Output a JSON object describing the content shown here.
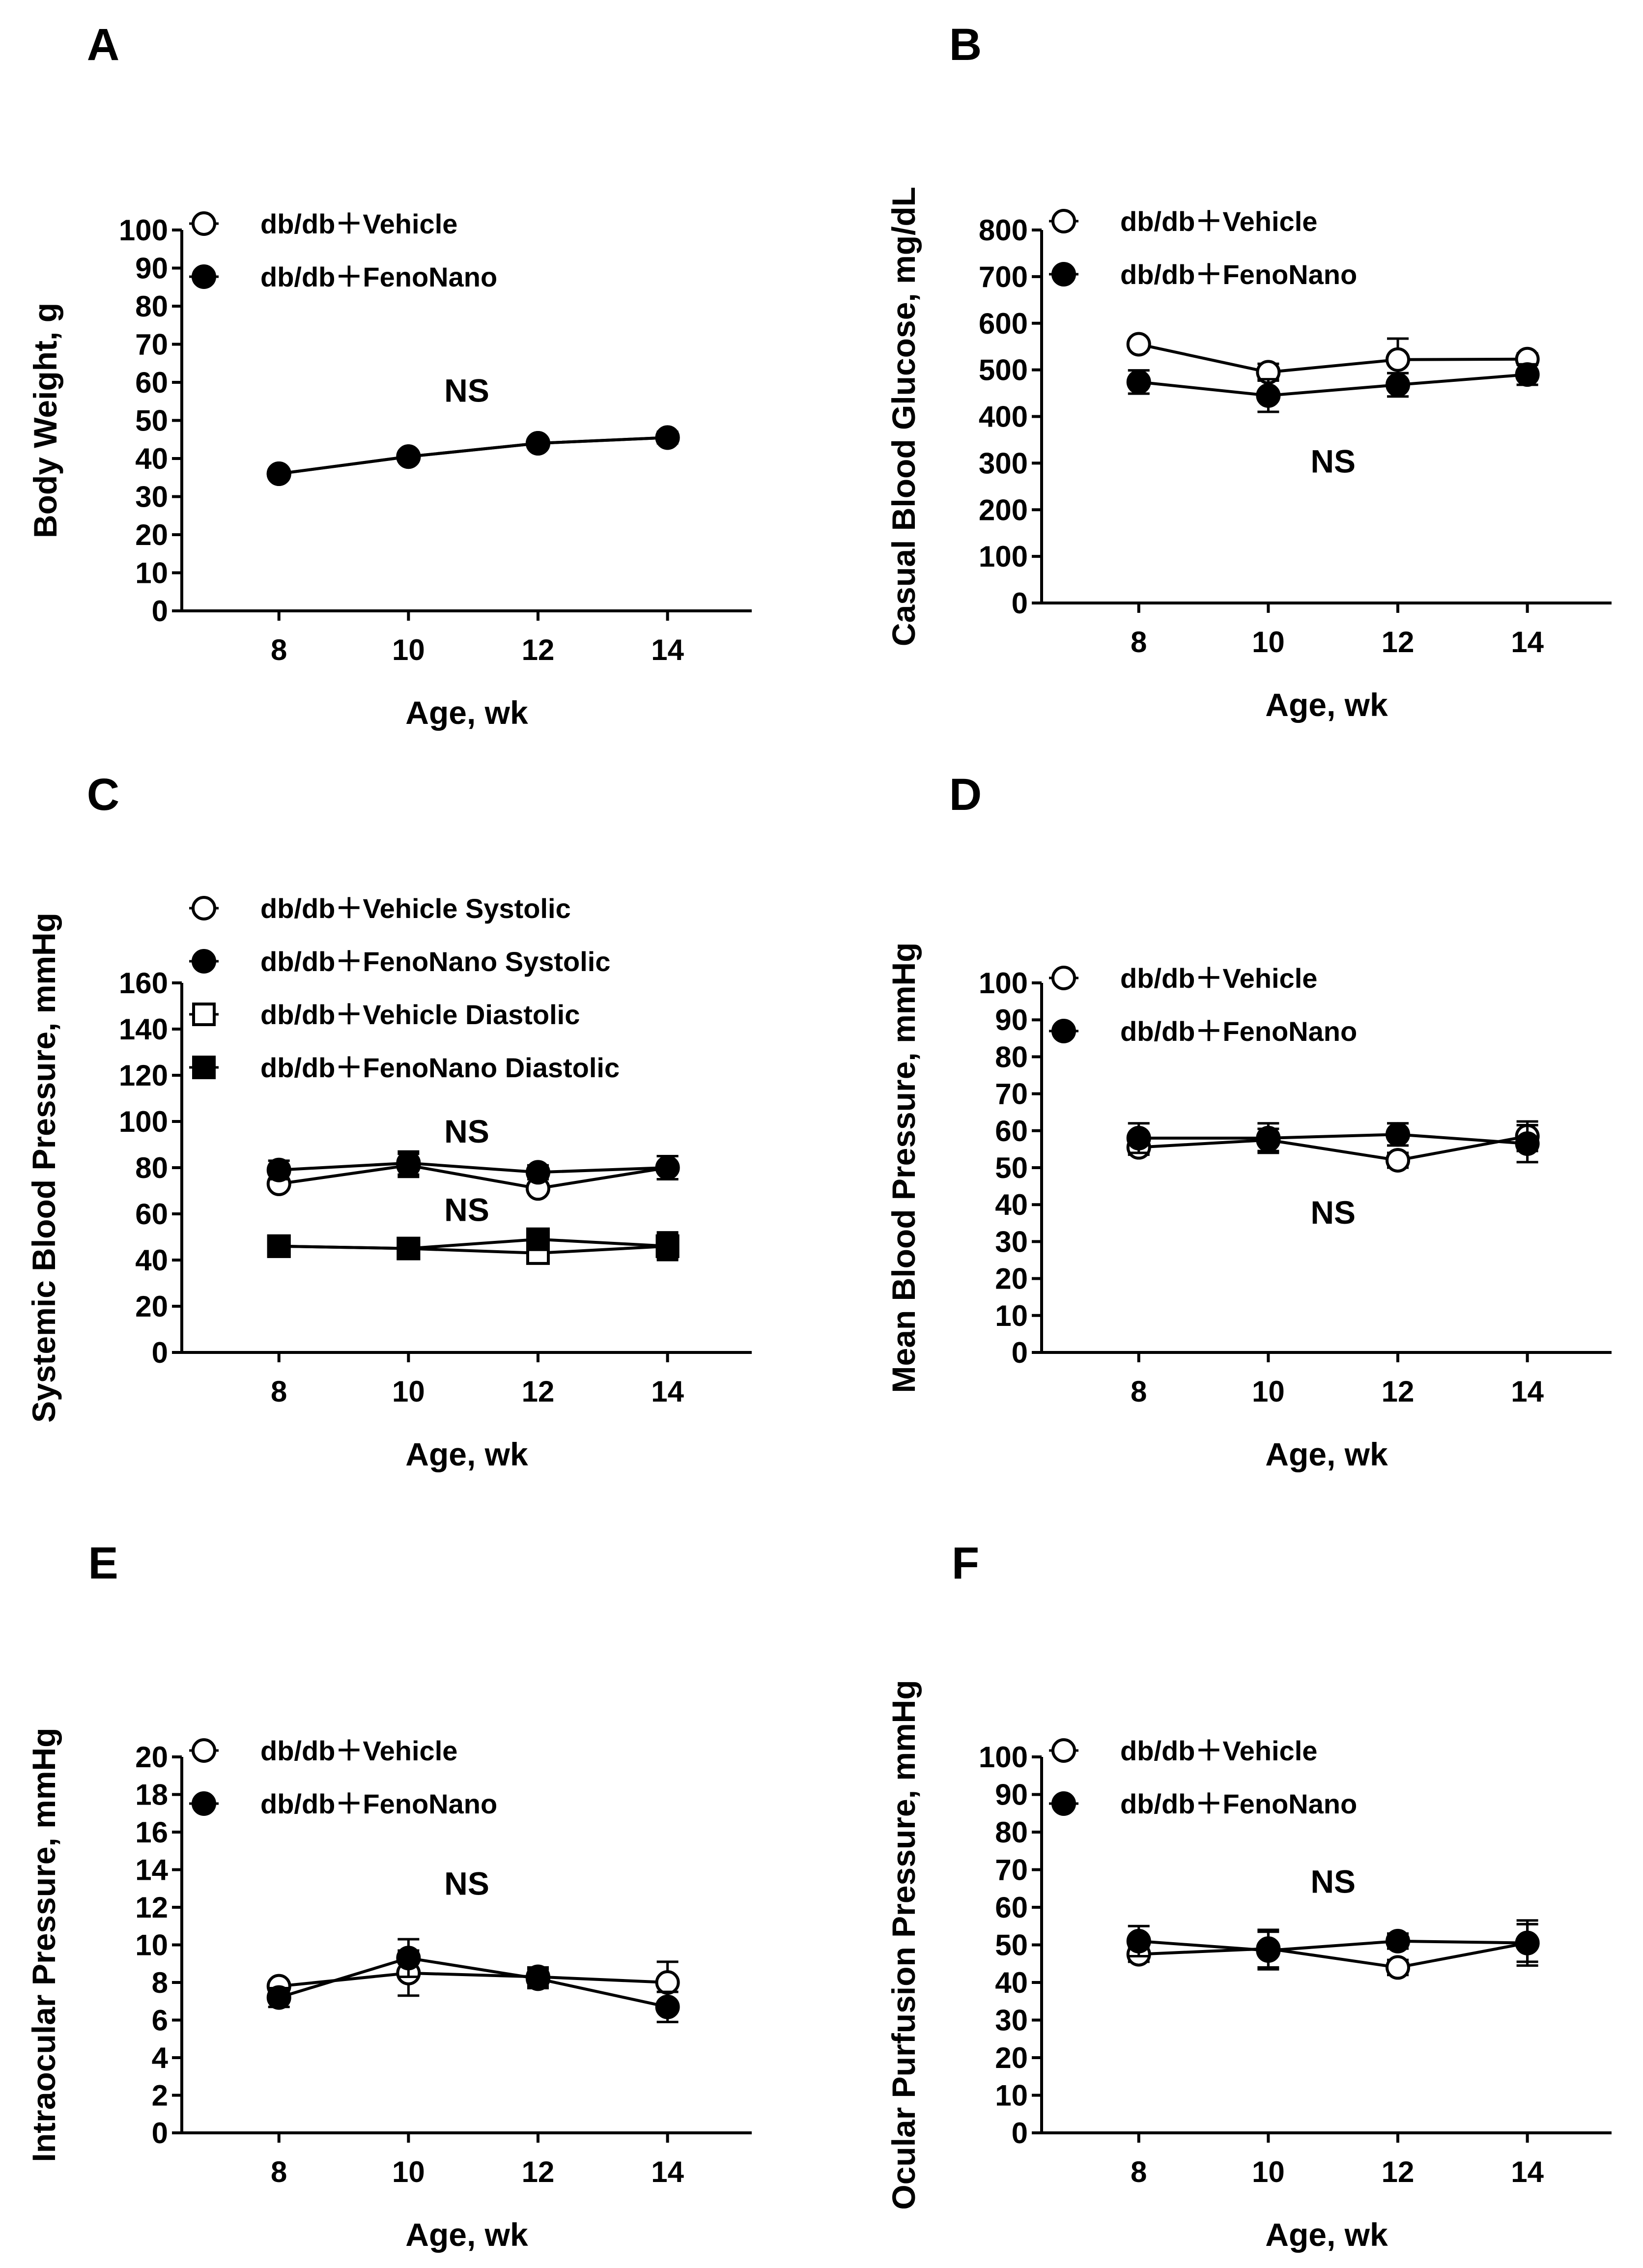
{
  "figure": {
    "panels": [
      {
        "letter": "A",
        "chart_data": {
          "type": "line",
          "title": "",
          "xlabel": "Age, wk",
          "ylabel": "Body Weight, g",
          "x": [
            8,
            10,
            12,
            14
          ],
          "xticks": [
            "8",
            "10",
            "12",
            "14"
          ],
          "xlim": [
            6.5,
            15.3
          ],
          "ylim": [
            0,
            100
          ],
          "yticks": [
            0,
            10,
            20,
            30,
            40,
            50,
            60,
            70,
            80,
            90,
            100
          ],
          "legend_position": "top-left",
          "annotations": [
            {
              "text": "NS",
              "x": 10.9,
              "y": 58
            }
          ],
          "series": [
            {
              "name": "db/db＋Vehicle",
              "marker": "circle-open",
              "values": [
                36,
                40.5,
                44,
                45.5
              ],
              "errors": [
                1,
                1,
                1,
                1
              ]
            },
            {
              "name": "db/db＋FenoNano",
              "marker": "circle-filled",
              "values": [
                36,
                40.5,
                44,
                45.5
              ],
              "errors": [
                1,
                1,
                1,
                1.5
              ]
            }
          ]
        }
      },
      {
        "letter": "B",
        "chart_data": {
          "type": "line",
          "title": "",
          "xlabel": "Age, wk",
          "ylabel": "Casual Blood Glucose, mg/dL",
          "x": [
            8,
            10,
            12,
            14
          ],
          "xticks": [
            "8",
            "10",
            "12",
            "14"
          ],
          "xlim": [
            6.5,
            15.3
          ],
          "ylim": [
            0,
            800
          ],
          "yticks": [
            0,
            100,
            200,
            300,
            400,
            500,
            600,
            700,
            800
          ],
          "legend_position": "top-left",
          "annotations": [
            {
              "text": "NS",
              "x": 11,
              "y": 305
            }
          ],
          "series": [
            {
              "name": "db/db＋Vehicle",
              "marker": "circle-open",
              "values": [
                555,
                495,
                522,
                523
              ],
              "errors": [
                0,
                18,
                45,
                12
              ]
            },
            {
              "name": "db/db＋FenoNano",
              "marker": "circle-filled",
              "values": [
                474,
                445,
                468,
                490
              ],
              "errors": [
                25,
                35,
                25,
                22
              ]
            }
          ]
        }
      },
      {
        "letter": "C",
        "chart_data": {
          "type": "line",
          "title": "",
          "xlabel": "Age, wk",
          "ylabel": "Systemic Blood Pressure, mmHg",
          "x": [
            8,
            10,
            12,
            14
          ],
          "xticks": [
            "8",
            "10",
            "12",
            "14"
          ],
          "xlim": [
            6.5,
            15.3
          ],
          "ylim": [
            0,
            160
          ],
          "yticks": [
            0,
            20,
            40,
            60,
            80,
            100,
            120,
            140,
            160
          ],
          "legend_position": "top-left",
          "annotations": [
            {
              "text": "NS",
              "x": 10.9,
              "y": 96
            },
            {
              "text": "NS",
              "x": 10.9,
              "y": 62
            }
          ],
          "series": [
            {
              "name": "db/db＋Vehicle  Systolic",
              "marker": "circle-open",
              "values": [
                73,
                81,
                71,
                80
              ],
              "errors": [
                0,
                5,
                0,
                5
              ]
            },
            {
              "name": "db/db＋FenoNano Systolic",
              "marker": "circle-filled",
              "values": [
                79,
                82,
                78,
                80
              ],
              "errors": [
                4,
                5,
                3,
                5
              ]
            },
            {
              "name": "db/db＋Vehicle Diastolic",
              "marker": "square-open",
              "values": [
                46,
                45,
                43,
                46
              ],
              "errors": [
                3,
                3,
                2,
                6
              ]
            },
            {
              "name": "db/db＋FenoNano Diastolic",
              "marker": "square-filled",
              "values": [
                46,
                45,
                49,
                46
              ],
              "errors": [
                3,
                3,
                3,
                5
              ]
            }
          ]
        }
      },
      {
        "letter": "D",
        "chart_data": {
          "type": "line",
          "title": "",
          "xlabel": "Age, wk",
          "ylabel": "Mean Blood Pressure, mmHg",
          "x": [
            8,
            10,
            12,
            14
          ],
          "xticks": [
            "8",
            "10",
            "12",
            "14"
          ],
          "xlim": [
            6.5,
            15.3
          ],
          "ylim": [
            0,
            100
          ],
          "yticks": [
            0,
            10,
            20,
            30,
            40,
            50,
            60,
            70,
            80,
            90,
            100
          ],
          "legend_position": "top-left",
          "annotations": [
            {
              "text": "NS",
              "x": 11,
              "y": 38
            }
          ],
          "series": [
            {
              "name": "db/db＋Vehicle",
              "marker": "circle-open",
              "values": [
                55.5,
                57.5,
                52,
                58.5
              ],
              "errors": [
                2,
                3,
                2,
                4
              ]
            },
            {
              "name": "db/db＋FenoNano",
              "marker": "circle-filled",
              "values": [
                58,
                58,
                59,
                56.5
              ],
              "errors": [
                4,
                4,
                3,
                5
              ]
            }
          ]
        }
      },
      {
        "letter": "E",
        "chart_data": {
          "type": "line",
          "title": "",
          "xlabel": "Age, wk",
          "ylabel": "Intraocular Pressure, mmHg",
          "x": [
            8,
            10,
            12,
            14
          ],
          "xticks": [
            "8",
            "10",
            "12",
            "14"
          ],
          "xlim": [
            6.5,
            15.3
          ],
          "ylim": [
            0,
            20
          ],
          "yticks": [
            0,
            2,
            4,
            6,
            8,
            10,
            12,
            14,
            16,
            18,
            20
          ],
          "legend_position": "top-left",
          "annotations": [
            {
              "text": "NS",
              "x": 10.9,
              "y": 13.3
            }
          ],
          "series": [
            {
              "name": "db/db＋Vehicle",
              "marker": "circle-open",
              "values": [
                7.8,
                8.5,
                8.3,
                8.0
              ],
              "errors": [
                0,
                1.2,
                0.5,
                1.1
              ]
            },
            {
              "name": "db/db＋FenoNano",
              "marker": "circle-filled",
              "values": [
                7.2,
                9.3,
                8.2,
                6.7
              ],
              "errors": [
                0.5,
                1.0,
                0.5,
                0.8
              ]
            }
          ]
        }
      },
      {
        "letter": "F",
        "chart_data": {
          "type": "line",
          "title": "",
          "xlabel": "Age, wk",
          "ylabel": "Ocular Purfusion Pressure, mmHg",
          "x": [
            8,
            10,
            12,
            14
          ],
          "xticks": [
            "8",
            "10",
            "12",
            "14"
          ],
          "xlim": [
            6.5,
            15.3
          ],
          "ylim": [
            0,
            100
          ],
          "yticks": [
            0,
            10,
            20,
            30,
            40,
            50,
            60,
            70,
            80,
            90,
            100
          ],
          "legend_position": "top-left",
          "annotations": [
            {
              "text": "NS",
              "x": 11,
              "y": 67
            }
          ],
          "series": [
            {
              "name": "db/db＋Vehicle",
              "marker": "circle-open",
              "values": [
                47.5,
                49,
                44,
                50.5
              ],
              "errors": [
                2,
                5,
                2,
                6
              ]
            },
            {
              "name": "db/db＋FenoNano",
              "marker": "circle-filled",
              "values": [
                51,
                48.5,
                51,
                50.5
              ],
              "errors": [
                4,
                5,
                2,
                5
              ]
            }
          ]
        }
      }
    ]
  }
}
